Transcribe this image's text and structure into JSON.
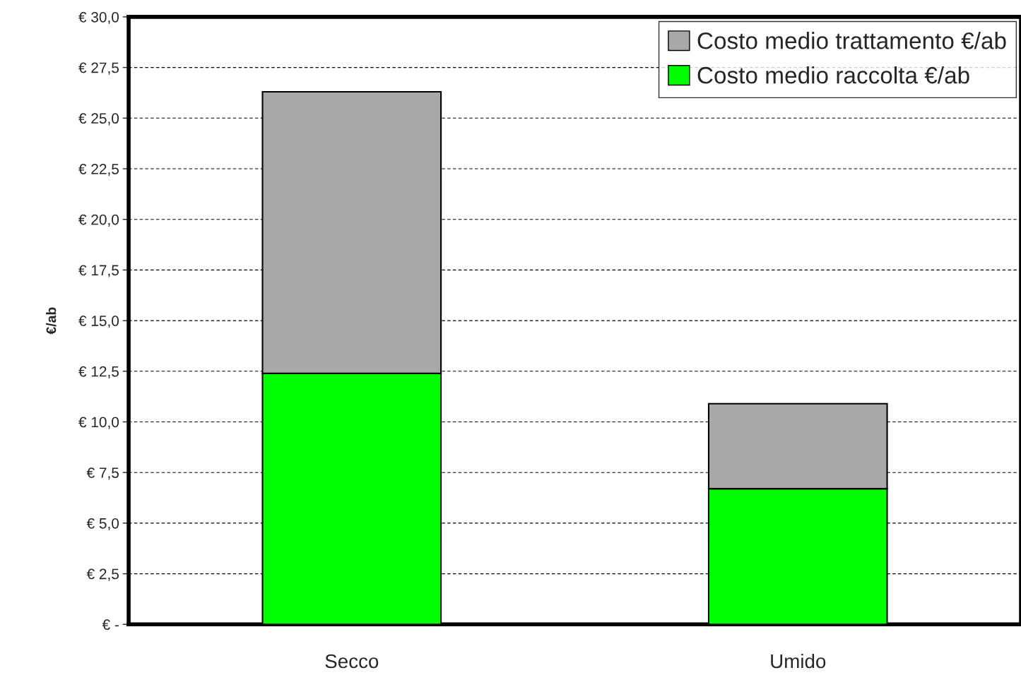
{
  "chart_data": {
    "type": "bar",
    "ylabel": "€/ab",
    "categories": [
      "Secco",
      "Umido"
    ],
    "stacked": true,
    "series": [
      {
        "name": "Costo medio raccolta €/ab",
        "color": "#00ff00",
        "values": [
          12.4,
          6.7
        ]
      },
      {
        "name": "Costo medio trattamento €/ab",
        "color": "#a8a8a8",
        "values": [
          13.9,
          4.2
        ]
      }
    ],
    "ylim": [
      0,
      30
    ],
    "yticks": [
      {
        "value": 0,
        "label": "€ -"
      },
      {
        "value": 2.5,
        "label": "€ 2,5"
      },
      {
        "value": 5,
        "label": "€ 5,0"
      },
      {
        "value": 7.5,
        "label": "€ 7,5"
      },
      {
        "value": 10,
        "label": "€ 10,0"
      },
      {
        "value": 12.5,
        "label": "€ 12,5"
      },
      {
        "value": 15,
        "label": "€ 15,0"
      },
      {
        "value": 17.5,
        "label": "€ 17,5"
      },
      {
        "value": 20,
        "label": "€ 20,0"
      },
      {
        "value": 22.5,
        "label": "€ 22,5"
      },
      {
        "value": 25,
        "label": "€ 25,0"
      },
      {
        "value": 27.5,
        "label": "€ 27,5"
      },
      {
        "value": 30,
        "label": "€ 30,0"
      }
    ],
    "grid": "y",
    "legend": "top right"
  }
}
